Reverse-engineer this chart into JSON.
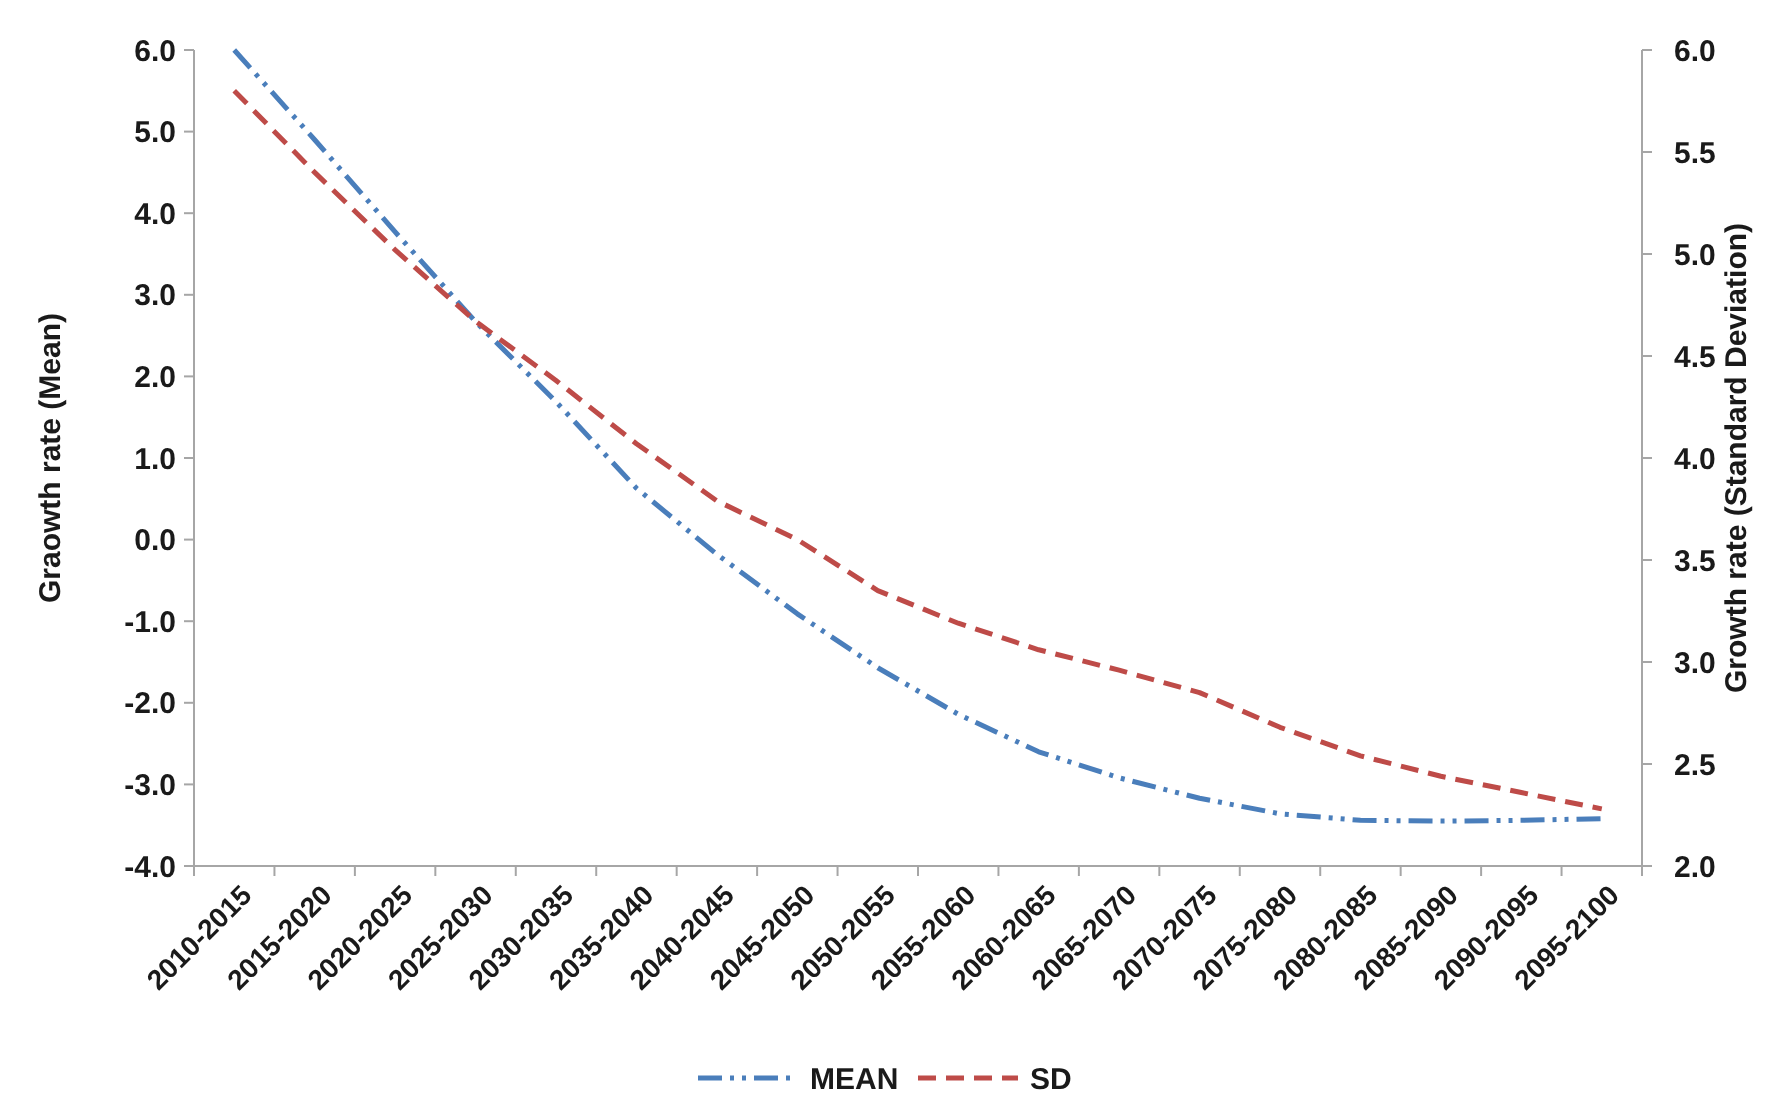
{
  "chart_data": {
    "type": "line",
    "categories": [
      "2010-2015",
      "2015-2020",
      "2020-2025",
      "2025-2030",
      "2030-2035",
      "2035-2040",
      "2040-2045",
      "2045-2050",
      "2050-2055",
      "2055-2060",
      "2060-2065",
      "2065-2070",
      "2070-2075",
      "2075-2080",
      "2080-2085",
      "2085-2090",
      "2090-2095",
      "2095-2100"
    ],
    "series": [
      {
        "name": "MEAN",
        "color": "#4a7ebb",
        "line_style": "dashdot",
        "values": [
          6.0,
          4.9,
          3.77,
          2.67,
          1.69,
          0.63,
          -0.18,
          -0.91,
          -1.57,
          -2.14,
          -2.6,
          -2.92,
          -3.17,
          -3.36,
          -3.44,
          -3.45,
          -3.44,
          -3.42
        ]
      },
      {
        "name": "SD",
        "color": "#be4b48",
        "line_style": "dashed",
        "axis": "y2",
        "values": [
          5.8,
          5.4,
          5.02,
          4.67,
          4.38,
          4.07,
          3.79,
          3.6,
          3.35,
          3.19,
          3.06,
          2.96,
          2.85,
          2.68,
          2.54,
          2.44,
          2.36,
          2.28
        ]
      }
    ],
    "ylabel": "Graowth rate (Mean)",
    "y2label": "Growth rate (Standard Deviation)",
    "ylim": [
      -4,
      6
    ],
    "yticks": [
      {
        "value": -4,
        "label": "-4.0"
      },
      {
        "value": -3,
        "label": "-3.0"
      },
      {
        "value": -2,
        "label": "-2.0"
      },
      {
        "value": -1,
        "label": "-1.0"
      },
      {
        "value": 0,
        "label": "0.0"
      },
      {
        "value": 1,
        "label": "1.0"
      },
      {
        "value": 2,
        "label": "2.0"
      },
      {
        "value": 3,
        "label": "3.0"
      },
      {
        "value": 4,
        "label": "4.0"
      },
      {
        "value": 5,
        "label": "5.0"
      },
      {
        "value": 6,
        "label": "6.0"
      }
    ],
    "y2lim": [
      2,
      6
    ],
    "y2ticks": [
      {
        "value": 2,
        "label": "2.0"
      },
      {
        "value": 2.5,
        "label": "2.5"
      },
      {
        "value": 3,
        "label": "3.0"
      },
      {
        "value": 3.5,
        "label": "3.5"
      },
      {
        "value": 4,
        "label": "4.0"
      },
      {
        "value": 4.5,
        "label": "4.5"
      },
      {
        "value": 5,
        "label": "5.0"
      },
      {
        "value": 5.5,
        "label": "5.5"
      },
      {
        "value": 6,
        "label": "6.0"
      }
    ],
    "legend": "bottom",
    "grid": false
  }
}
